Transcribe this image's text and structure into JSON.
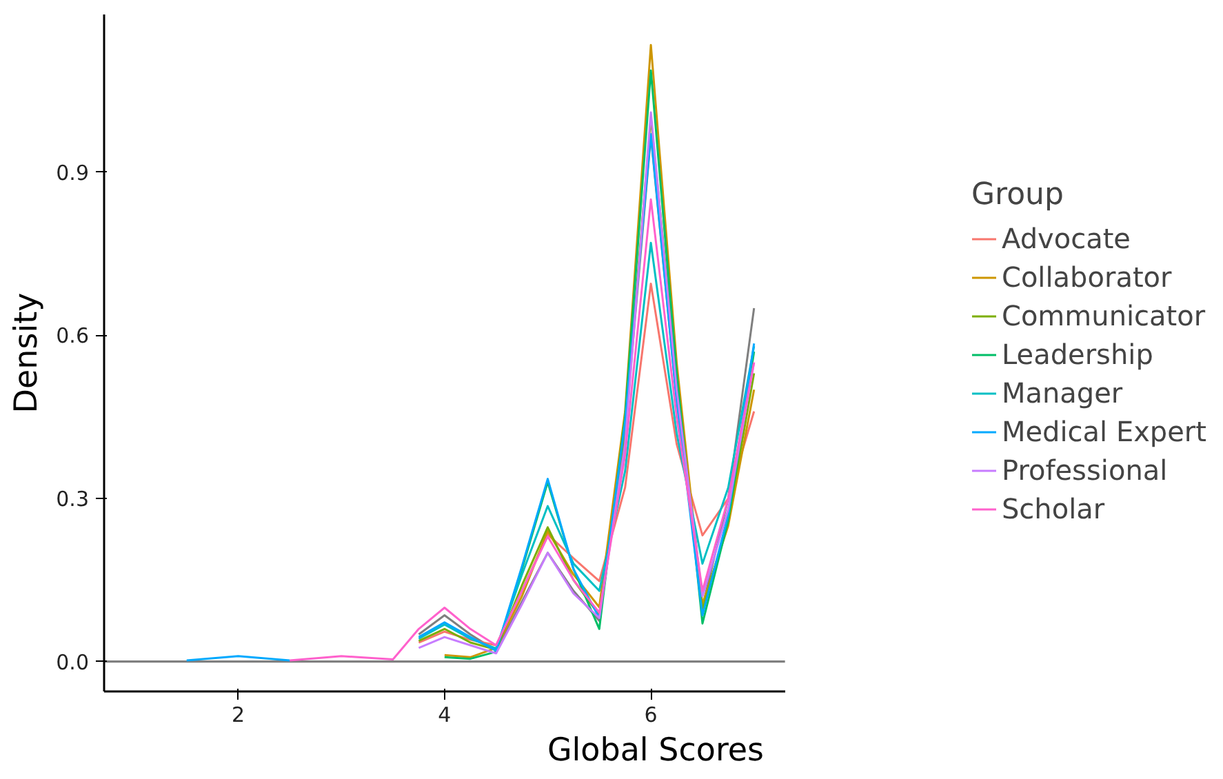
{
  "chart_data": {
    "type": "line",
    "xlabel": "Global Scores",
    "ylabel": "Density",
    "legend_title": "Group",
    "legend": "right",
    "grid": false,
    "marker": "none",
    "line_style": "solid",
    "x": [
      1.5,
      2,
      2.5,
      3,
      3.5,
      3.75,
      4,
      4.25,
      4.5,
      4.75,
      5,
      5.25,
      5.5,
      5.75,
      6,
      6.25,
      6.5,
      6.75,
      7
    ],
    "xlim": [
      0.7,
      7.3
    ],
    "ylim": [
      -0.055,
      1.19
    ],
    "xticks": [
      2,
      4,
      6
    ],
    "yticks": [
      {
        "value": 0,
        "label": "0.0"
      },
      {
        "value": 0.3,
        "label": "0.3"
      },
      {
        "value": 0.6,
        "label": "0.6"
      },
      {
        "value": 0.9,
        "label": "0.9"
      }
    ],
    "ref_lines": [
      {
        "axis": "y",
        "value": 0,
        "color": "#7f7f7f"
      }
    ],
    "series": [
      {
        "color": "#7f7f7f",
        "values": [
          null,
          null,
          null,
          null,
          null,
          0.05,
          0.085,
          0.05,
          0.02,
          0.11,
          0.2,
          0.13,
          0.075,
          0.42,
          0.967,
          0.48,
          0.1,
          0.3,
          0.65
        ]
      },
      {
        "name": "Advocate",
        "color": "#f8766d",
        "values": [
          null,
          null,
          null,
          null,
          null,
          0.035,
          0.055,
          0.04,
          0.03,
          0.13,
          0.234,
          0.19,
          0.148,
          0.32,
          0.695,
          0.4,
          0.232,
          0.3,
          0.46
        ]
      },
      {
        "name": "Collaborator",
        "color": "#cd9600",
        "values": [
          null,
          null,
          null,
          null,
          null,
          null,
          0.012,
          0.008,
          0.025,
          0.12,
          0.24,
          0.16,
          0.1,
          0.46,
          1.134,
          0.55,
          0.105,
          0.25,
          0.5
        ]
      },
      {
        "name": "Communicator",
        "color": "#7cae00",
        "values": [
          null,
          null,
          null,
          null,
          null,
          0.038,
          0.06,
          0.035,
          0.022,
          0.14,
          0.247,
          0.15,
          0.085,
          0.43,
          1.0,
          0.52,
          0.095,
          0.26,
          0.53
        ]
      },
      {
        "name": "Leadership",
        "color": "#00be67",
        "values": [
          null,
          null,
          null,
          null,
          null,
          null,
          0.008,
          0.005,
          0.018,
          0.17,
          0.33,
          0.17,
          0.06,
          0.45,
          1.087,
          0.53,
          0.07,
          0.26,
          0.57
        ]
      },
      {
        "name": "Manager",
        "color": "#00bfc4",
        "values": [
          null,
          null,
          null,
          null,
          null,
          0.042,
          0.068,
          0.042,
          0.024,
          0.16,
          0.286,
          0.18,
          0.13,
          0.35,
          0.77,
          0.42,
          0.18,
          0.32,
          0.58
        ]
      },
      {
        "name": "Medical Expert",
        "color": "#00a9ff",
        "values": [
          0.002,
          0.01,
          0.002,
          null,
          null,
          0.045,
          0.072,
          0.045,
          0.02,
          0.175,
          0.336,
          0.17,
          0.08,
          0.44,
          0.97,
          0.48,
          0.085,
          0.27,
          0.585
        ]
      },
      {
        "name": "Professional",
        "color": "#c77cff",
        "values": [
          null,
          null,
          null,
          null,
          null,
          0.025,
          0.045,
          0.03,
          0.015,
          0.105,
          0.2,
          0.125,
          0.08,
          0.4,
          1.01,
          0.5,
          0.12,
          0.28,
          0.55
        ]
      },
      {
        "name": "Scholar",
        "color": "#ff61cc",
        "values": [
          null,
          null,
          0.002,
          0.01,
          0.004,
          0.06,
          0.099,
          0.06,
          0.03,
          0.13,
          0.23,
          0.15,
          0.09,
          0.38,
          0.85,
          0.45,
          0.13,
          0.3,
          0.55
        ]
      }
    ]
  }
}
